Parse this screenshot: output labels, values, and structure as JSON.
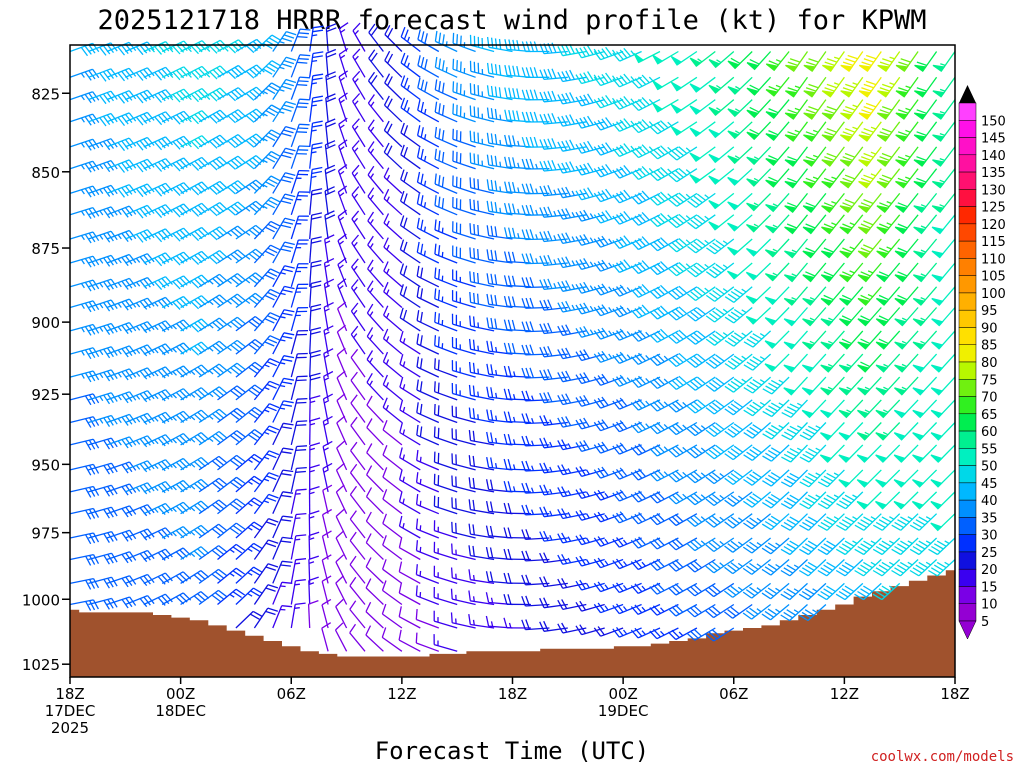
{
  "chart_data": {
    "type": "wind-barbs",
    "title": "2025121718 HRRR forecast wind profile (kt) for KPWM",
    "xlabel": "Forecast Time (UTC)",
    "ylabel": "",
    "credit": "coolwx.com/models",
    "x_hours_range": [
      0,
      48
    ],
    "ylim": [
      1030,
      810
    ],
    "y_scale": "log-pressure",
    "y_ticks": [
      "825",
      "850",
      "875",
      "900",
      "925",
      "950",
      "975",
      "1000",
      "1025"
    ],
    "x_ticks": [
      {
        "hour": 0,
        "lines": [
          "18Z",
          "17DEC",
          "2025"
        ]
      },
      {
        "hour": 6,
        "lines": [
          "00Z",
          "18DEC"
        ]
      },
      {
        "hour": 12,
        "lines": [
          "06Z"
        ]
      },
      {
        "hour": 18,
        "lines": [
          "12Z"
        ]
      },
      {
        "hour": 24,
        "lines": [
          "18Z"
        ]
      },
      {
        "hour": 30,
        "lines": [
          "00Z",
          "19DEC"
        ]
      },
      {
        "hour": 36,
        "lines": [
          "06Z"
        ]
      },
      {
        "hour": 42,
        "lines": [
          "12Z"
        ]
      },
      {
        "hour": 48,
        "lines": [
          "18Z"
        ]
      }
    ],
    "surface_pressure": [
      1004,
      1005,
      1005,
      1005,
      1005,
      1006,
      1007,
      1008,
      1010,
      1012,
      1014,
      1016,
      1018,
      1020,
      1021,
      1022,
      1022,
      1022,
      1022,
      1022,
      1021,
      1021,
      1020,
      1020,
      1020,
      1020,
      1019,
      1019,
      1019,
      1019,
      1018,
      1018,
      1017,
      1016,
      1015,
      1013,
      1012,
      1011,
      1010,
      1008,
      1006,
      1004,
      1002,
      999,
      997,
      995,
      993,
      991,
      989
    ],
    "wind_levels_mb": [
      812,
      820,
      827,
      834,
      842,
      849,
      857,
      864,
      872,
      880,
      888,
      895,
      903,
      911,
      919,
      927,
      935,
      943,
      952,
      960,
      968,
      977,
      985,
      994,
      1002,
      1011,
      1020
    ],
    "speed_profiles": [
      {
        "hour": 0,
        "bottom_kt": 28,
        "top_kt": 38
      },
      {
        "hour": 6,
        "bottom_kt": 30,
        "top_kt": 45
      },
      {
        "hour": 9,
        "bottom_kt": 20,
        "top_kt": 42
      },
      {
        "hour": 12,
        "bottom_kt": 12,
        "top_kt": 32
      },
      {
        "hour": 15,
        "bottom_kt": 8,
        "top_kt": 16
      },
      {
        "hour": 18,
        "bottom_kt": 8,
        "top_kt": 20
      },
      {
        "hour": 21,
        "bottom_kt": 12,
        "top_kt": 34
      },
      {
        "hour": 24,
        "bottom_kt": 14,
        "top_kt": 40
      },
      {
        "hour": 30,
        "bottom_kt": 20,
        "top_kt": 45
      },
      {
        "hour": 36,
        "bottom_kt": 28,
        "top_kt": 55
      },
      {
        "hour": 40,
        "bottom_kt": 30,
        "top_kt": 68
      },
      {
        "hour": 44,
        "bottom_kt": 35,
        "top_kt": 82
      },
      {
        "hour": 48,
        "bottom_kt": 45,
        "top_kt": 55
      }
    ],
    "direction_profiles": [
      {
        "hour": 0,
        "bottom_deg": 80,
        "top_deg": 70
      },
      {
        "hour": 9,
        "bottom_deg": 45,
        "top_deg": 60
      },
      {
        "hour": 16,
        "bottom_deg": 320,
        "top_deg": 330
      },
      {
        "hour": 20,
        "bottom_deg": 290,
        "top_deg": 300
      },
      {
        "hour": 30,
        "bottom_deg": 250,
        "top_deg": 250
      },
      {
        "hour": 40,
        "bottom_deg": 230,
        "top_deg": 215
      },
      {
        "hour": 48,
        "bottom_deg": 230,
        "top_deg": 215
      }
    ],
    "colorbar": {
      "labels": [
        5,
        10,
        15,
        20,
        25,
        30,
        35,
        40,
        45,
        50,
        55,
        60,
        65,
        70,
        75,
        80,
        85,
        90,
        95,
        100,
        105,
        110,
        115,
        120,
        125,
        130,
        135,
        140,
        145,
        150
      ],
      "colors": [
        "#9400d3",
        "#7a00e6",
        "#3a00f0",
        "#1010e0",
        "#0030ff",
        "#0060ff",
        "#0090ff",
        "#00b8ff",
        "#00d8e8",
        "#00f0c0",
        "#00f090",
        "#00ee50",
        "#30f020",
        "#70f010",
        "#b8f800",
        "#f0f000",
        "#ffe000",
        "#ffc800",
        "#ffb000",
        "#ff9800",
        "#ff8000",
        "#ff6400",
        "#ff4800",
        "#ff2800",
        "#ff1040",
        "#ff1070",
        "#ff10a0",
        "#ff10c8",
        "#ff10e8",
        "#ff40ff"
      ],
      "top_triangle": "#000000",
      "bottom_triangle": "#9400d3"
    },
    "terrain_color": "#a0522d"
  }
}
